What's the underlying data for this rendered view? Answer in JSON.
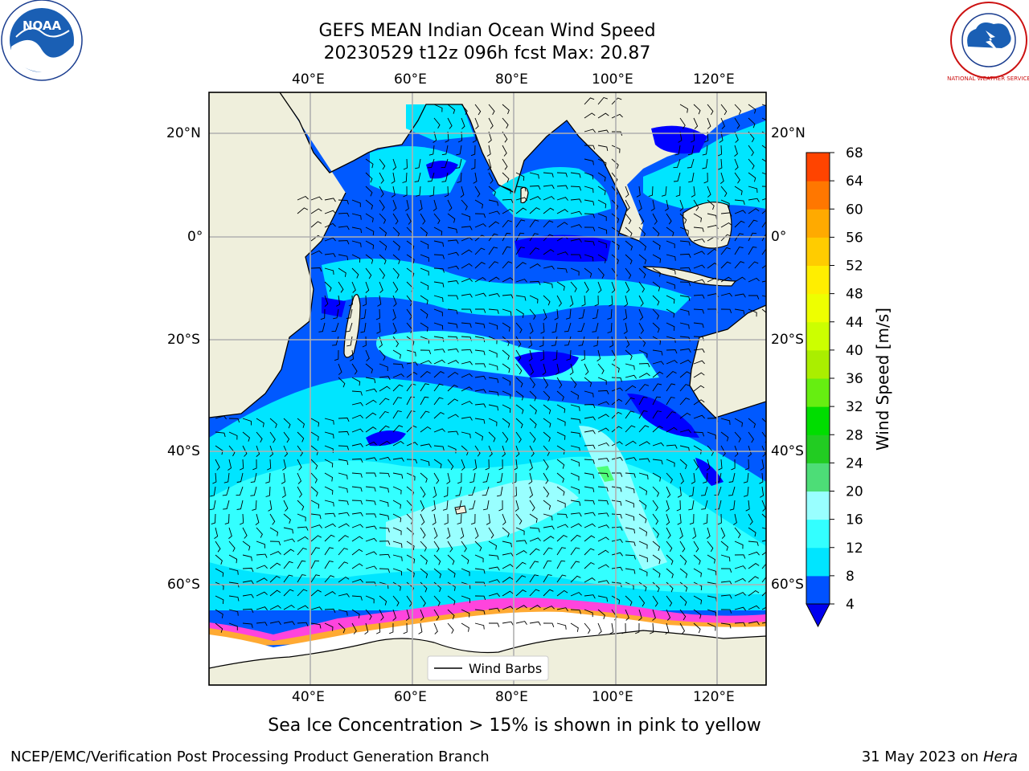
{
  "header": {
    "title_line1": "GEFS MEAN Indian Ocean Wind Speed",
    "title_line2": "20230529 t12z 096h fcst   Max: 20.87"
  },
  "logos": {
    "noaa_text": "NOAA",
    "nws_text": "NATIONAL WEATHER SERVICE"
  },
  "map": {
    "lon_ticks": [
      "40°E",
      "60°E",
      "80°E",
      "100°E",
      "120°E"
    ],
    "lat_ticks": [
      "20°N",
      "0°",
      "20°S",
      "40°S",
      "60°S"
    ],
    "legend_label": "Wind Barbs",
    "colors": {
      "land": "#efefdc",
      "ice": "#ffffff",
      "band_4": "#0059ff",
      "band_0": "#0000ff",
      "band_8": "#00e5ff",
      "band_12": "#33ffff",
      "band_16": "#99ffff",
      "band_20": "#4dff7a",
      "ice_edge_pink": "#ff44dd",
      "ice_edge_orange": "#ffaa33"
    }
  },
  "colorbar": {
    "label": "Wind Speed [m/s]",
    "ticks": [
      "4",
      "8",
      "12",
      "16",
      "20",
      "24",
      "28",
      "32",
      "36",
      "40",
      "44",
      "48",
      "52",
      "56",
      "60",
      "64",
      "68"
    ],
    "colors": [
      "#0052ff",
      "#00e5ff",
      "#33ffff",
      "#99ffff",
      "#4ddd77",
      "#22cc22",
      "#00dd00",
      "#66ee11",
      "#aaee00",
      "#ccff00",
      "#eeff00",
      "#ffee00",
      "#ffcc00",
      "#ffaa00",
      "#ff7700",
      "#ff4400",
      "#ff0000"
    ],
    "under_color": "#0000ee"
  },
  "footer": {
    "note": "Sea Ice Concentration > 15% is shown in pink to yellow",
    "credit": "NCEP/EMC/Verification Post Processing Product Generation Branch",
    "date": "31 May 2023 on ",
    "host": "Hera"
  }
}
